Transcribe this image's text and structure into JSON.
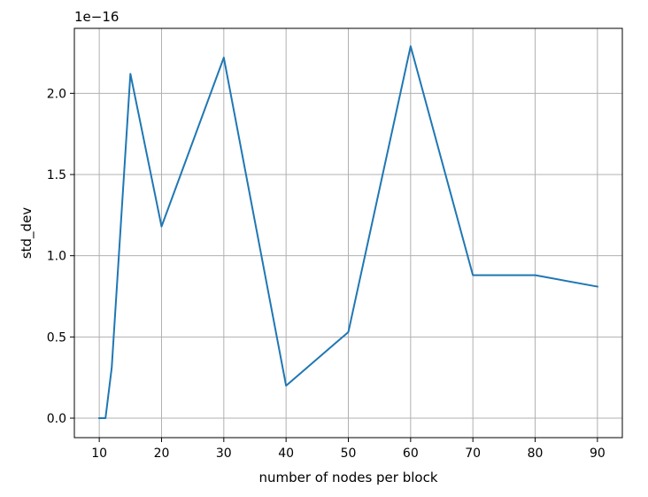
{
  "chart_data": {
    "type": "line",
    "title": "",
    "xlabel": "number of nodes per block",
    "ylabel": "std_dev",
    "y_offset_text": "1e−16",
    "xlim": [
      6,
      94
    ],
    "ylim": [
      -0.12,
      2.4
    ],
    "grid": true,
    "x_ticks": [
      10,
      20,
      30,
      40,
      50,
      60,
      70,
      80,
      90
    ],
    "x_tick_labels": [
      "10",
      "20",
      "30",
      "40",
      "50",
      "60",
      "70",
      "80",
      "90"
    ],
    "y_ticks": [
      0.0,
      0.5,
      1.0,
      1.5,
      2.0
    ],
    "y_tick_labels": [
      "0.0",
      "0.5",
      "1.0",
      "1.5",
      "2.0"
    ],
    "series": [
      {
        "color": "#1f77b4",
        "x": [
          10,
          11,
          12,
          15,
          20,
          30,
          40,
          50,
          60,
          70,
          80,
          90
        ],
        "y": [
          0.0,
          0.0,
          0.31,
          2.12,
          1.18,
          2.22,
          0.2,
          0.53,
          2.29,
          0.88,
          0.88,
          0.81
        ]
      }
    ]
  }
}
